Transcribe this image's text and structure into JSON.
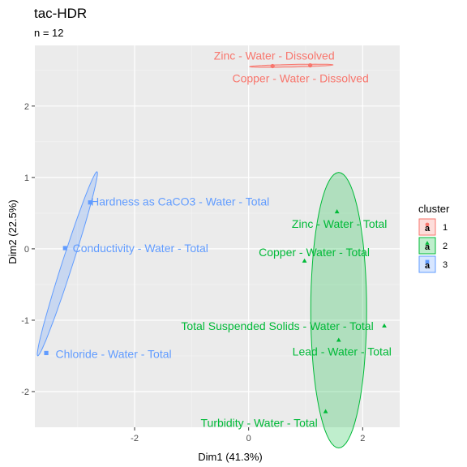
{
  "chart_data": {
    "type": "scatter",
    "title": "tac-HDR",
    "subtitle": "n = 12",
    "xlabel": "Dim1 (41.3%)",
    "ylabel": "Dim2 (22.5%)",
    "xlim": [
      -3.75,
      2.65
    ],
    "ylim": [
      -2.5,
      2.85
    ],
    "xticks": [
      -2,
      0,
      2
    ],
    "yticks": [
      -2,
      -1,
      0,
      1,
      2
    ],
    "grid": true,
    "legend": {
      "title": "cluster",
      "position": "right"
    },
    "colors": {
      "1": "#f8766d",
      "2": "#00ba38",
      "3": "#619cff"
    },
    "series": [
      {
        "name": "1",
        "shape": "circle",
        "points": [
          {
            "label": "Zinc - Water - Dissolved",
            "x": 0.42,
            "y": 2.56
          },
          {
            "label": "Copper - Water - Dissolved",
            "x": 1.08,
            "y": 2.57
          }
        ],
        "ellipse": {
          "cx": 0.75,
          "cy": 2.565,
          "rx": 0.73,
          "ry": 0.018,
          "angle": 1.0
        }
      },
      {
        "name": "2",
        "shape": "triangle",
        "points": [
          {
            "label": "Zinc - Water - Total",
            "x": 1.55,
            "y": 0.52
          },
          {
            "label": "Copper - Water - Total",
            "x": 0.98,
            "y": -0.17
          },
          {
            "label": "Total Suspended Solids - Water - Total",
            "x": 2.38,
            "y": -1.08
          },
          {
            "label": "Lead - Water - Total",
            "x": 1.58,
            "y": -1.28
          },
          {
            "label": "Turbidity - Water - Total",
            "x": 1.35,
            "y": -2.28
          }
        ],
        "ellipse": {
          "cx": 1.58,
          "cy": -0.86,
          "rx": 0.49,
          "ry": 1.93,
          "angle": 0
        }
      },
      {
        "name": "3",
        "shape": "square",
        "points": [
          {
            "label": "Hardness as CaCO3 - Water - Total",
            "x": -2.78,
            "y": 0.65
          },
          {
            "label": "Conductivity - Water - Total",
            "x": -3.22,
            "y": 0.01
          },
          {
            "label": "Chloride - Water - Total",
            "x": -3.55,
            "y": -1.46
          }
        ],
        "ellipse": {
          "cx": -3.18,
          "cy": -0.21,
          "rx": 1.39,
          "ry": 0.09,
          "angle": 68
        }
      }
    ]
  }
}
